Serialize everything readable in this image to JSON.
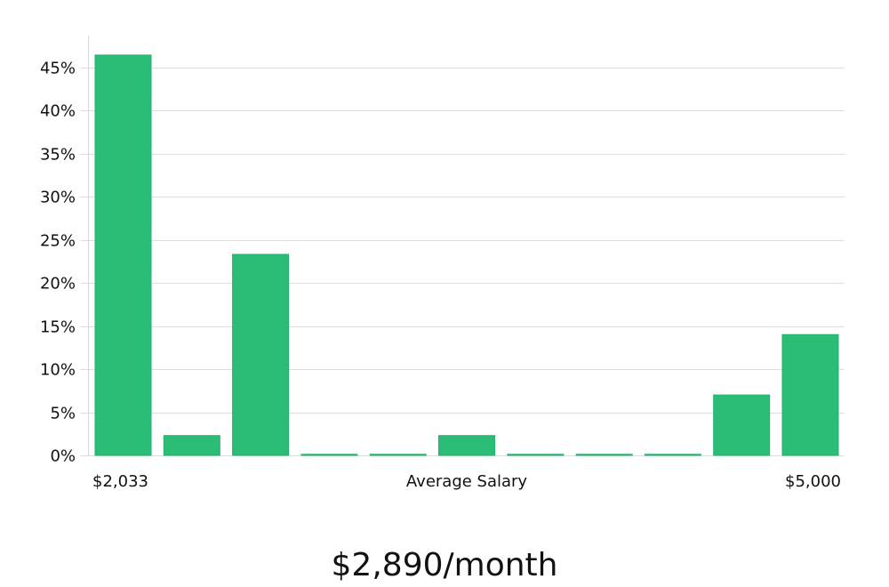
{
  "chart_data": {
    "type": "bar",
    "values": [
      46.4,
      2.3,
      23.3,
      0.1,
      0.05,
      2.3,
      0.05,
      0.05,
      0.05,
      7.0,
      14.0
    ],
    "ylim": [
      0,
      48
    ],
    "y_ticks": [
      "0%",
      "5%",
      "10%",
      "15%",
      "20%",
      "25%",
      "30%",
      "35%",
      "40%",
      "45%"
    ],
    "x_min_label": "$2,033",
    "xlabel": "Average Salary",
    "x_max_label": "$5,000",
    "grid": true,
    "bar_color": "#2bbd76",
    "zero_bar_color": "#1a1a1a"
  },
  "headline": "$2,890/month"
}
